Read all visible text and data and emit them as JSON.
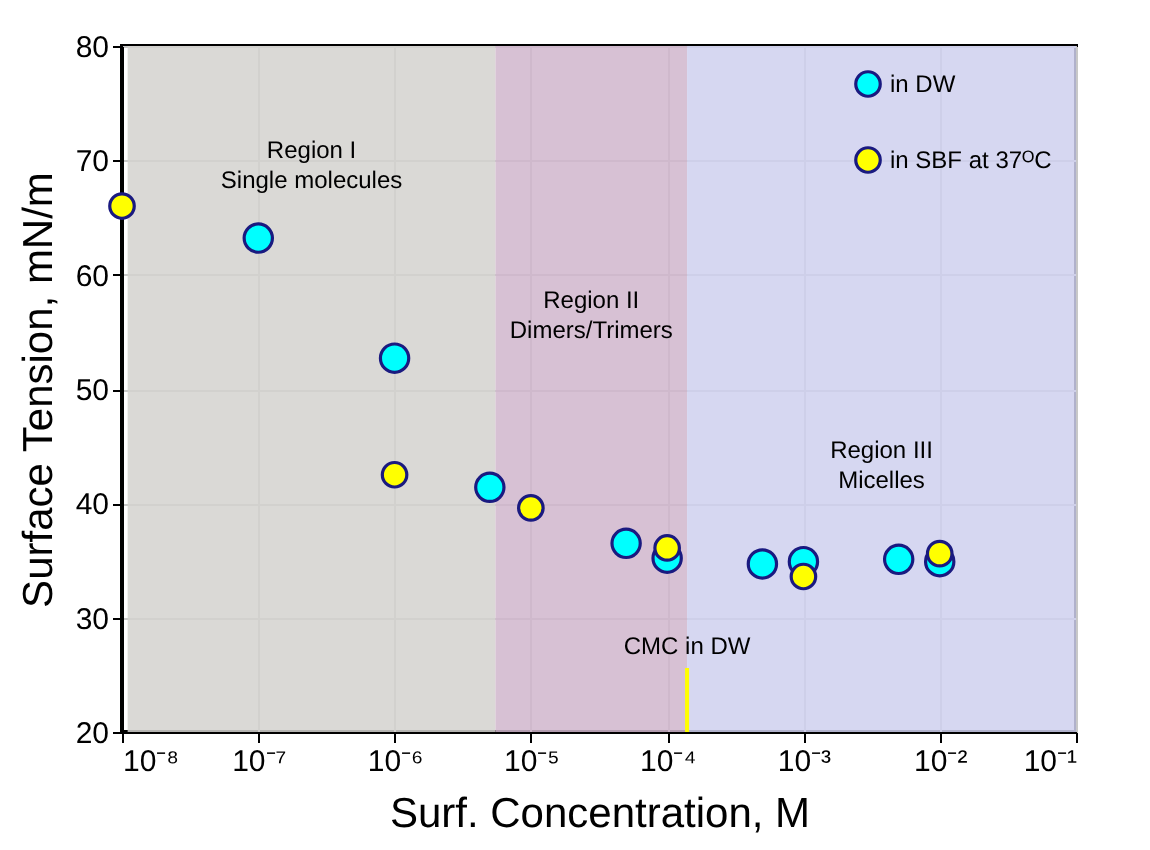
{
  "chart_data": {
    "type": "scatter",
    "xlabel": "Surf. Concentration, M",
    "ylabel": "Surface Tension, mN/m",
    "log": "x",
    "grid": true,
    "legend": "top right",
    "marker": "circle",
    "xlim": [
      1e-08,
      0.1
    ],
    "ylim": [
      20,
      80
    ],
    "xticks": [
      {
        "value": 1e-08,
        "label": "10⁻⁸"
      },
      {
        "value": 1e-07,
        "label": "10⁻⁷"
      },
      {
        "value": 1e-06,
        "label": "10⁻⁶"
      },
      {
        "value": 1e-05,
        "label": "10⁻⁵"
      },
      {
        "value": 0.0001,
        "label": "10⁻⁴"
      },
      {
        "value": 0.001,
        "label": "10⁻³"
      },
      {
        "value": 0.01,
        "label": "10⁻²"
      },
      {
        "value": 0.1,
        "label": "10⁻¹"
      }
    ],
    "yticks": [
      20,
      30,
      40,
      50,
      60,
      70,
      80
    ],
    "series": [
      {
        "name": "in DW",
        "color": "#00ffff",
        "x": [
          1e-07,
          1e-06,
          5e-06,
          5e-05,
          0.0001,
          0.0005,
          0.001,
          0.005,
          0.01
        ],
        "values": [
          63.2,
          52.7,
          41.4,
          36.5,
          35.2,
          34.7,
          34.9,
          35.1,
          34.9
        ]
      },
      {
        "name": "in SBF at 37ᴼC",
        "color": "#ffff00",
        "x": [
          1e-08,
          1e-06,
          1e-05,
          0.0001,
          0.001,
          0.01
        ],
        "values": [
          66.0,
          42.5,
          39.6,
          36.1,
          33.6,
          35.6
        ]
      }
    ],
    "bands": [
      {
        "axis": "x",
        "from": 1.1e-08,
        "to": 5.5e-06,
        "color": "#d4d2cf",
        "label": "Region I\nSingle molecules"
      },
      {
        "axis": "x",
        "from": 5.5e-06,
        "to": 0.00014,
        "color": "#d0b6cc",
        "label": "Region II\nDimers/Trimers"
      },
      {
        "axis": "x",
        "from": 0.00014,
        "to": 0.1,
        "color": "#cfd0ee",
        "label": "Region III\nMicelles"
      }
    ],
    "ref_lines": [
      {
        "axis": "x",
        "value": 0.00014,
        "label": "CMC in DW",
        "color": "#ffff00"
      }
    ]
  }
}
